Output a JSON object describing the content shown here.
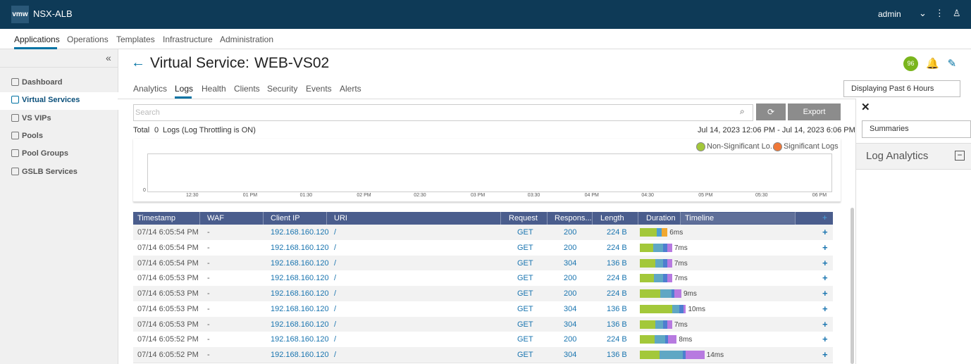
{
  "header": {
    "logo": "vmw",
    "product": "NSX-ALB",
    "user": "admin"
  },
  "nav": [
    "Applications",
    "Operations",
    "Templates",
    "Infrastructure",
    "Administration"
  ],
  "sidebar": [
    "Dashboard",
    "Virtual Services",
    "VS VIPs",
    "Pools",
    "Pool Groups",
    "GSLB Services"
  ],
  "page": {
    "title_prefix": "Virtual Service:",
    "title": "WEB-VS02",
    "health": "96",
    "tabs": [
      "Analytics",
      "Logs",
      "Health",
      "Clients",
      "Security",
      "Events",
      "Alerts"
    ],
    "time_range": "Displaying Past 6 Hours",
    "search_placeholder": "Search",
    "export": "Export",
    "total_label": "Total",
    "total_count": "0",
    "total_suffix": "Logs (Log Throttling is ON)",
    "date_range": "Jul 14, 2023 12:06 PM - Jul 14, 2023 6:06 PM"
  },
  "chart": {
    "legend": [
      "Non-Significant Lo...",
      "Significant Logs"
    ],
    "y_label": "0",
    "x_labels": [
      "12:30",
      "01 PM",
      "01:30",
      "02 PM",
      "02:30",
      "03 PM",
      "03:30",
      "04 PM",
      "04:30",
      "05 PM",
      "05:30",
      "06 PM"
    ]
  },
  "table": {
    "columns": [
      "Timestamp",
      "WAF",
      "Client IP",
      "URI",
      "Request",
      "Respons...",
      "Length",
      "Duration",
      "Timeline"
    ],
    "rows": [
      {
        "timestamp": "07/14 6:05:54 PM",
        "waf": "-",
        "client_ip": "192.168.160.120",
        "uri": "/",
        "request": "GET",
        "response": "200",
        "length": "224 B",
        "duration": "6ms",
        "timeline": [
          {
            "ms": 3.7,
            "color": "#a3c83a"
          },
          {
            "ms": 1.0,
            "color": "#4d9fcf"
          },
          {
            "ms": 1.3,
            "color": "#f0a830"
          }
        ]
      },
      {
        "timestamp": "07/14 6:05:54 PM",
        "waf": "-",
        "client_ip": "192.168.160.120",
        "uri": "/",
        "request": "GET",
        "response": "200",
        "length": "224 B",
        "duration": "7ms",
        "timeline": [
          {
            "ms": 2.9,
            "color": "#a3c83a"
          },
          {
            "ms": 2.1,
            "color": "#5fa7c4"
          },
          {
            "ms": 0.9,
            "color": "#4d7fd0"
          },
          {
            "ms": 1.1,
            "color": "#b77ae0"
          }
        ]
      },
      {
        "timestamp": "07/14 6:05:54 PM",
        "waf": "-",
        "client_ip": "192.168.160.120",
        "uri": "/",
        "request": "GET",
        "response": "304",
        "length": "136 B",
        "duration": "7ms",
        "timeline": [
          {
            "ms": 3.4,
            "color": "#a3c83a"
          },
          {
            "ms": 1.6,
            "color": "#5fa7c4"
          },
          {
            "ms": 1.0,
            "color": "#4d7fd0"
          },
          {
            "ms": 1.0,
            "color": "#b77ae0"
          }
        ]
      },
      {
        "timestamp": "07/14 6:05:53 PM",
        "waf": "-",
        "client_ip": "192.168.160.120",
        "uri": "/",
        "request": "GET",
        "response": "200",
        "length": "224 B",
        "duration": "7ms",
        "timeline": [
          {
            "ms": 3.1,
            "color": "#a3c83a"
          },
          {
            "ms": 2.0,
            "color": "#5fa7c4"
          },
          {
            "ms": 0.9,
            "color": "#4d7fd0"
          },
          {
            "ms": 1.0,
            "color": "#b77ae0"
          }
        ]
      },
      {
        "timestamp": "07/14 6:05:53 PM",
        "waf": "-",
        "client_ip": "192.168.160.120",
        "uri": "/",
        "request": "GET",
        "response": "200",
        "length": "224 B",
        "duration": "9ms",
        "timeline": [
          {
            "ms": 4.4,
            "color": "#a3c83a"
          },
          {
            "ms": 2.5,
            "color": "#5fa7c4"
          },
          {
            "ms": 0.6,
            "color": "#4d7fd0"
          },
          {
            "ms": 1.5,
            "color": "#b77ae0"
          }
        ]
      },
      {
        "timestamp": "07/14 6:05:53 PM",
        "waf": "-",
        "client_ip": "192.168.160.120",
        "uri": "/",
        "request": "GET",
        "response": "304",
        "length": "136 B",
        "duration": "10ms",
        "timeline": [
          {
            "ms": 7.0,
            "color": "#a3c83a"
          },
          {
            "ms": 1.6,
            "color": "#5fa7c4"
          },
          {
            "ms": 0.8,
            "color": "#4d7fd0"
          },
          {
            "ms": 0.6,
            "color": "#b77ae0"
          }
        ]
      },
      {
        "timestamp": "07/14 6:05:53 PM",
        "waf": "-",
        "client_ip": "192.168.160.120",
        "uri": "/",
        "request": "GET",
        "response": "304",
        "length": "136 B",
        "duration": "7ms",
        "timeline": [
          {
            "ms": 3.4,
            "color": "#a3c83a"
          },
          {
            "ms": 1.7,
            "color": "#5fa7c4"
          },
          {
            "ms": 0.9,
            "color": "#4d7fd0"
          },
          {
            "ms": 1.0,
            "color": "#b77ae0"
          }
        ]
      },
      {
        "timestamp": "07/14 6:05:52 PM",
        "waf": "-",
        "client_ip": "192.168.160.120",
        "uri": "/",
        "request": "GET",
        "response": "200",
        "length": "224 B",
        "duration": "8ms",
        "timeline": [
          {
            "ms": 3.2,
            "color": "#a3c83a"
          },
          {
            "ms": 2.3,
            "color": "#5fa7c4"
          },
          {
            "ms": 0.6,
            "color": "#4d7fd0"
          },
          {
            "ms": 1.9,
            "color": "#b77ae0"
          }
        ]
      },
      {
        "timestamp": "07/14 6:05:52 PM",
        "waf": "-",
        "client_ip": "192.168.160.120",
        "uri": "/",
        "request": "GET",
        "response": "304",
        "length": "136 B",
        "duration": "14ms",
        "timeline": [
          {
            "ms": 4.3,
            "color": "#a3c83a"
          },
          {
            "ms": 5.0,
            "color": "#5fa7c4"
          },
          {
            "ms": 0.6,
            "color": "#4d7fd0"
          },
          {
            "ms": 4.1,
            "color": "#b77ae0"
          }
        ]
      }
    ]
  },
  "side_panel": {
    "select": "Summaries",
    "title": "Log Analytics"
  }
}
